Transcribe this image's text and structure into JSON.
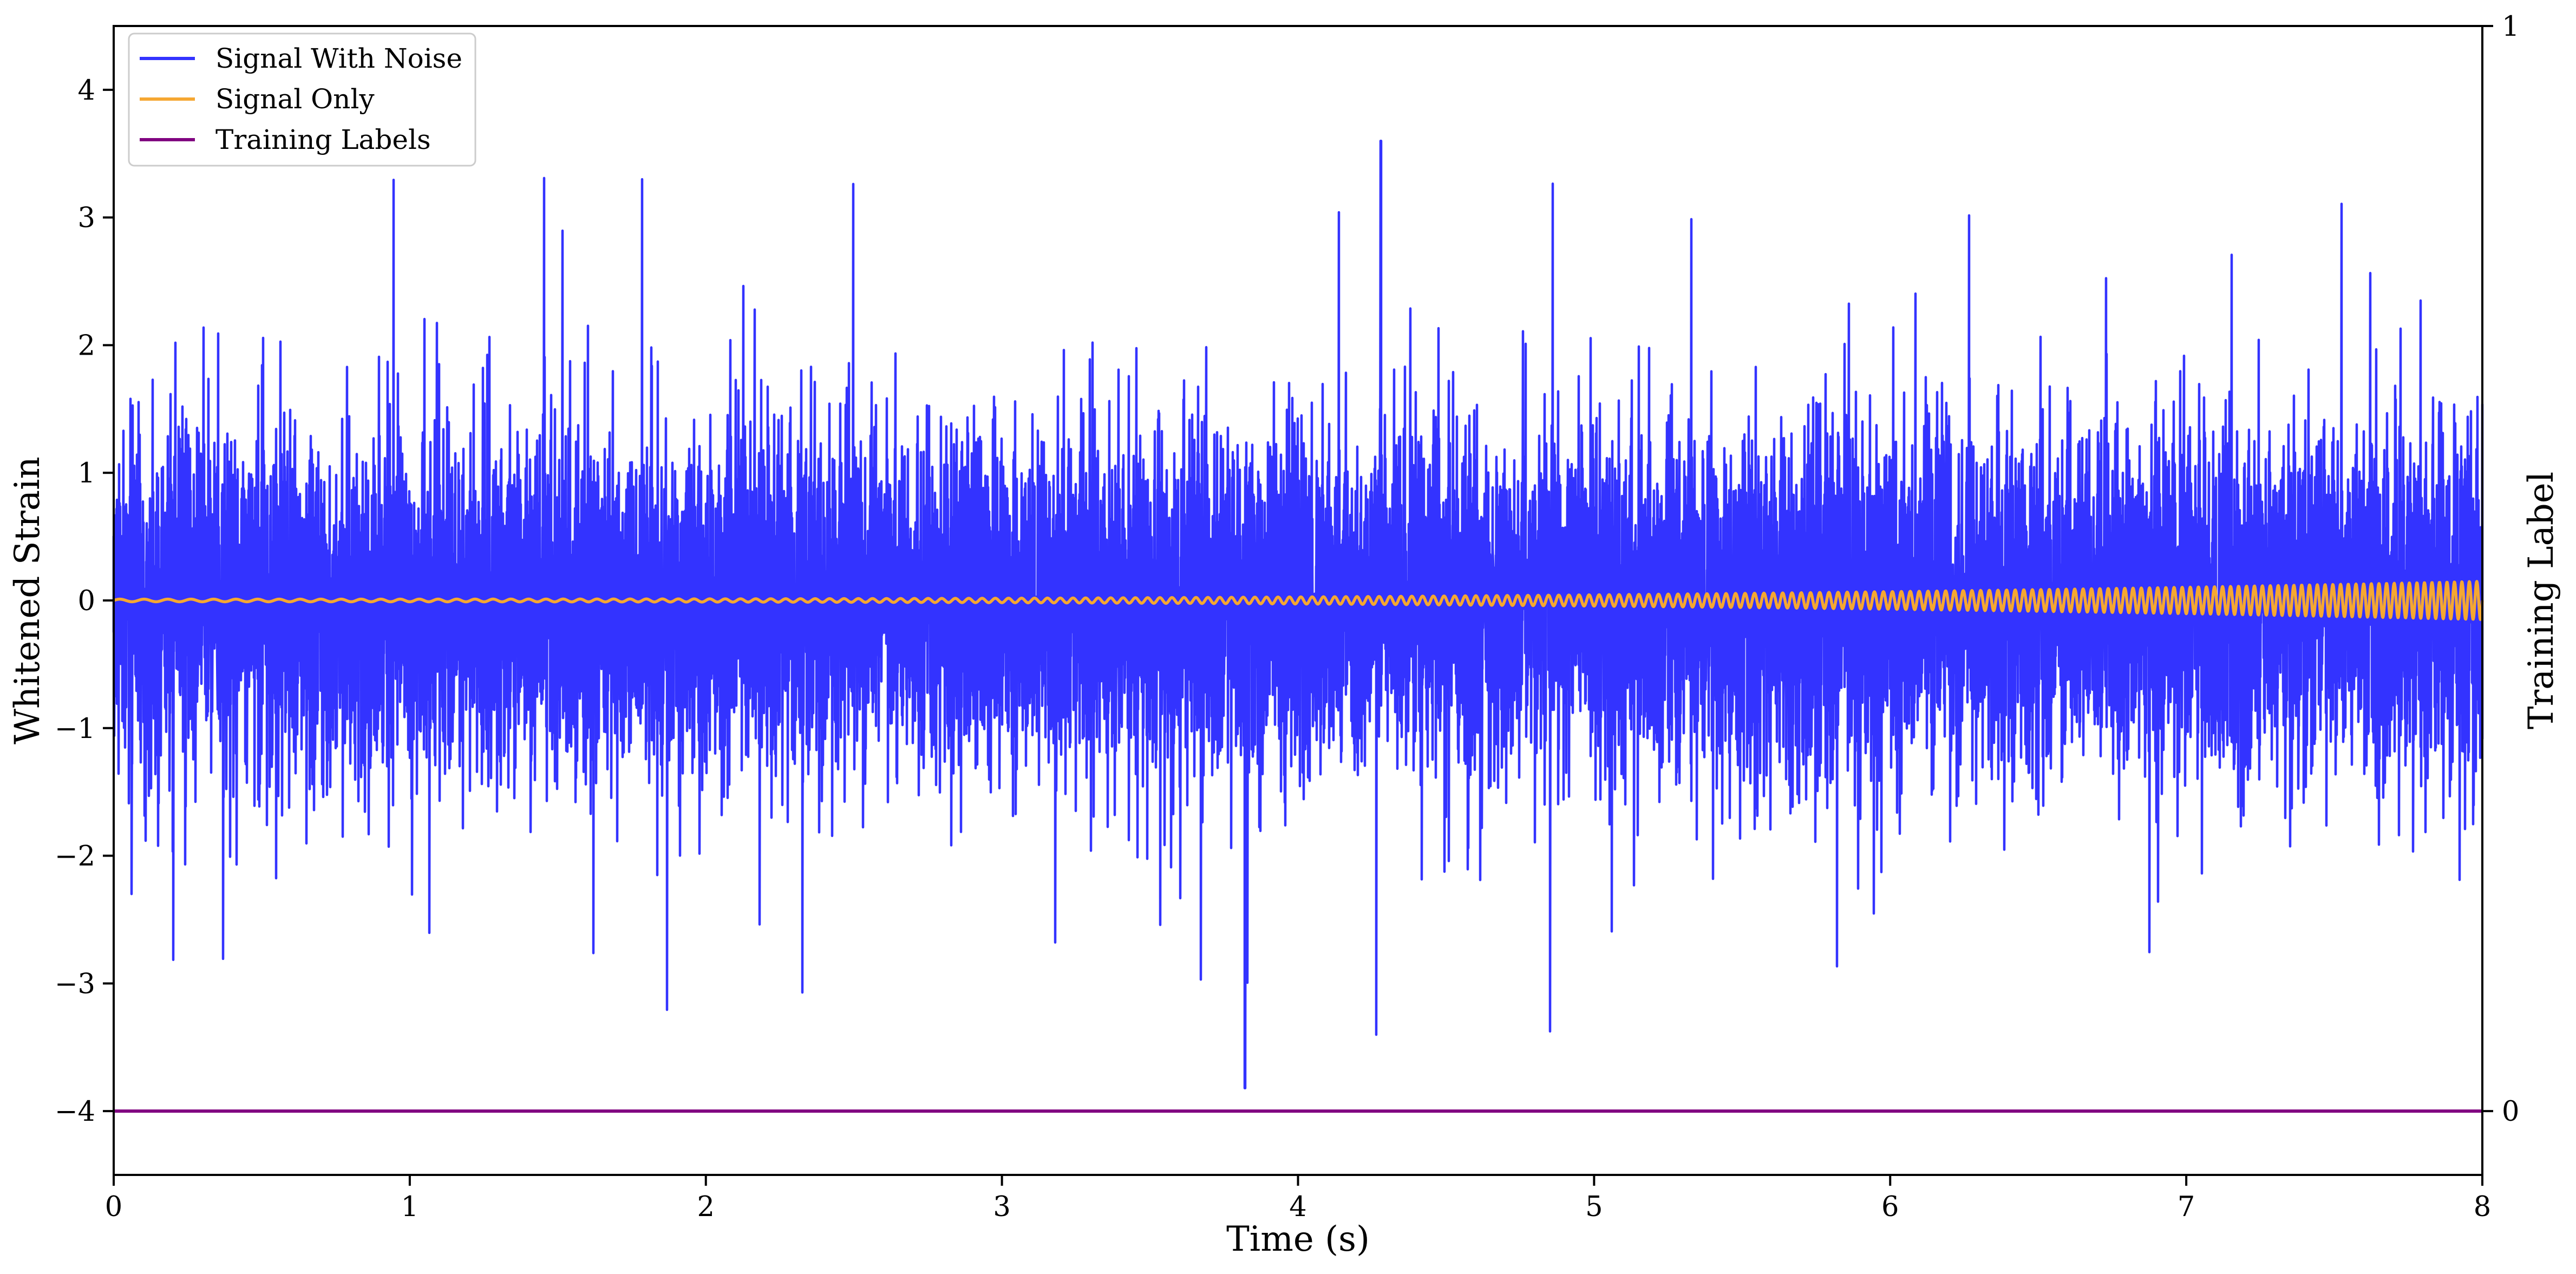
{
  "chart_data": {
    "type": "line",
    "title": "",
    "xlabel": "Time (s)",
    "ylabel": "Whitened Strain",
    "ylabel_right": "Training Label",
    "xlim": [
      0,
      8
    ],
    "ylim": [
      -4.5,
      4.5
    ],
    "ylim_right": [
      0,
      1
    ],
    "x_ticks": [
      0,
      1,
      2,
      3,
      4,
      5,
      6,
      7,
      8
    ],
    "x_tick_labels": [
      "0",
      "1",
      "2",
      "3",
      "4",
      "5",
      "6",
      "7",
      "8"
    ],
    "y_ticks": [
      -4,
      -3,
      -2,
      -1,
      0,
      1,
      2,
      3,
      4
    ],
    "y_tick_labels": [
      "−4",
      "−3",
      "−2",
      "−1",
      "0",
      "1",
      "2",
      "3",
      "4"
    ],
    "y_right_ticks": [
      0,
      1
    ],
    "y_right_tick_labels": [
      "0",
      "1"
    ],
    "grid": false,
    "legend_position": "top-left",
    "series": [
      {
        "name": "Signal With Noise",
        "color": "#3333ff",
        "noise_std": 0.65,
        "typical_peak": 2.6,
        "max_value": 3.6,
        "max_at_x": 4.28,
        "min_value": -3.82,
        "min_at_x": 3.82,
        "sample_rate_hz": 2048
      },
      {
        "name": "Signal Only",
        "color": "#f5a732",
        "start_amplitude": 0.01,
        "end_amplitude": 0.15,
        "start_frequency_hz": 12,
        "end_frequency_hz": 40
      },
      {
        "name": "Training Labels",
        "color": "#800080",
        "axis": "right",
        "x": [
          0,
          8
        ],
        "values": [
          0,
          0
        ]
      }
    ]
  }
}
